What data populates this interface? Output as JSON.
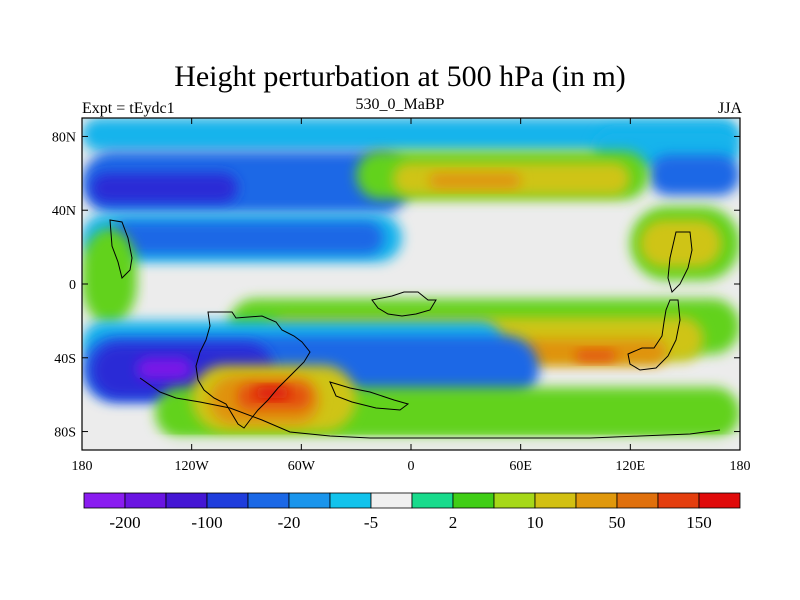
{
  "title": "Height perturbation at 500 hPa (in m)",
  "left_string": "Expt = tEydc1",
  "center_string": "530_0_MaBP",
  "right_string": "JJA",
  "map": {
    "lon_range": [
      -180,
      180
    ],
    "lat_range": [
      -90,
      90
    ],
    "x_ticks": [
      {
        "value": -180,
        "label": "180"
      },
      {
        "value": -120,
        "label": "120W"
      },
      {
        "value": -60,
        "label": "60W"
      },
      {
        "value": 0,
        "label": "0"
      },
      {
        "value": 60,
        "label": "60E"
      },
      {
        "value": 120,
        "label": "120E"
      },
      {
        "value": 180,
        "label": "180"
      }
    ],
    "y_ticks": [
      {
        "value": 80,
        "label": "80N"
      },
      {
        "value": 40,
        "label": "40N"
      },
      {
        "value": 0,
        "label": "0"
      },
      {
        "value": -40,
        "label": "40S"
      },
      {
        "value": -80,
        "label": "80S"
      }
    ],
    "features": [
      {
        "name": "field-background",
        "level": 2,
        "lon": -180,
        "lat": 90,
        "w": 360,
        "h": 180
      },
      {
        "name": "arctic-cyan-band",
        "level": -5,
        "lon": -180,
        "lat": 90,
        "w": 360,
        "h": 18
      },
      {
        "name": "arctic-cyan-east",
        "level": -5,
        "lon": 100,
        "lat": 84,
        "w": 80,
        "h": 22
      },
      {
        "name": "north-blue-west",
        "level": -20,
        "lon": -180,
        "lat": 72,
        "w": 180,
        "h": 34
      },
      {
        "name": "north-deep-blue-west",
        "level": -100,
        "lon": -175,
        "lat": 60,
        "w": 80,
        "h": 16
      },
      {
        "name": "north-blue-east",
        "level": -20,
        "lon": 130,
        "lat": 70,
        "w": 50,
        "h": 22
      },
      {
        "name": "north-green-band",
        "level": 5,
        "lon": -30,
        "lat": 72,
        "w": 160,
        "h": 26
      },
      {
        "name": "north-yellow-band",
        "level": 20,
        "lon": -10,
        "lat": 66,
        "w": 130,
        "h": 18
      },
      {
        "name": "north-orange-core",
        "level": 50,
        "lon": 10,
        "lat": 60,
        "w": 50,
        "h": 8
      },
      {
        "name": "midlat-cyan-west",
        "level": -5,
        "lon": -180,
        "lat": 38,
        "w": 175,
        "h": 26
      },
      {
        "name": "midlat-blue-west",
        "level": -20,
        "lon": -165,
        "lat": 34,
        "w": 150,
        "h": 18
      },
      {
        "name": "midlat-green-east",
        "level": 5,
        "lon": 120,
        "lat": 42,
        "w": 60,
        "h": 40
      },
      {
        "name": "midlat-yellow-east",
        "level": 20,
        "lon": 125,
        "lat": 35,
        "w": 45,
        "h": 26
      },
      {
        "name": "tropic-green-west",
        "level": 5,
        "lon": -180,
        "lat": 30,
        "w": 30,
        "h": 52
      },
      {
        "name": "south-green-band",
        "level": 5,
        "lon": -100,
        "lat": -8,
        "w": 280,
        "h": 30
      },
      {
        "name": "south-yellow-band",
        "level": 20,
        "lon": -80,
        "lat": -18,
        "w": 240,
        "h": 24
      },
      {
        "name": "south-orange-east",
        "level": 50,
        "lon": 60,
        "lat": -30,
        "w": 80,
        "h": 14
      },
      {
        "name": "south-red-east",
        "level": 100,
        "lon": 90,
        "lat": -36,
        "w": 22,
        "h": 6
      },
      {
        "name": "southern-cyan-band",
        "level": -5,
        "lon": -180,
        "lat": -20,
        "w": 230,
        "h": 24
      },
      {
        "name": "southern-blue-band",
        "level": -20,
        "lon": -180,
        "lat": -28,
        "w": 250,
        "h": 36
      },
      {
        "name": "southern-deep-blue",
        "level": -100,
        "lon": -175,
        "lat": -32,
        "w": 100,
        "h": 30
      },
      {
        "name": "southern-purple-core",
        "level": -200,
        "lon": -150,
        "lat": -40,
        "w": 30,
        "h": 12
      },
      {
        "name": "antarctic-green",
        "level": 5,
        "lon": -140,
        "lat": -56,
        "w": 320,
        "h": 28
      },
      {
        "name": "antarctic-yellow",
        "level": 20,
        "lon": -120,
        "lat": -44,
        "w": 90,
        "h": 36
      },
      {
        "name": "antarctic-orange",
        "level": 50,
        "lon": -110,
        "lat": -50,
        "w": 60,
        "h": 26
      },
      {
        "name": "antarctic-red",
        "level": 100,
        "lon": -95,
        "lat": -54,
        "w": 40,
        "h": 14
      },
      {
        "name": "antarctic-deep-red",
        "level": 150,
        "lon": -85,
        "lat": -56,
        "w": 18,
        "h": 6
      },
      {
        "name": "antarctic-grey-edge",
        "level": 2,
        "lon": -180,
        "lat": -84,
        "w": 360,
        "h": 6
      }
    ]
  },
  "colorbar": {
    "colors": [
      "#8a1cf0",
      "#6a14e2",
      "#4416d4",
      "#1f3ddc",
      "#1b68e6",
      "#1a95ec",
      "#12c3ec",
      "#f0f0f0",
      "#18db8c",
      "#40ce16",
      "#a6d818",
      "#d2c012",
      "#e0980c",
      "#e0700c",
      "#e43e0e",
      "#e00a0a"
    ],
    "labels": [
      "-200",
      "-100",
      "-20",
      "-5",
      "2",
      "10",
      "50",
      "150"
    ],
    "levels": [
      -250,
      -200,
      -150,
      -100,
      -50,
      -20,
      -10,
      -5,
      -2,
      2,
      5,
      10,
      20,
      50,
      100,
      150
    ]
  }
}
